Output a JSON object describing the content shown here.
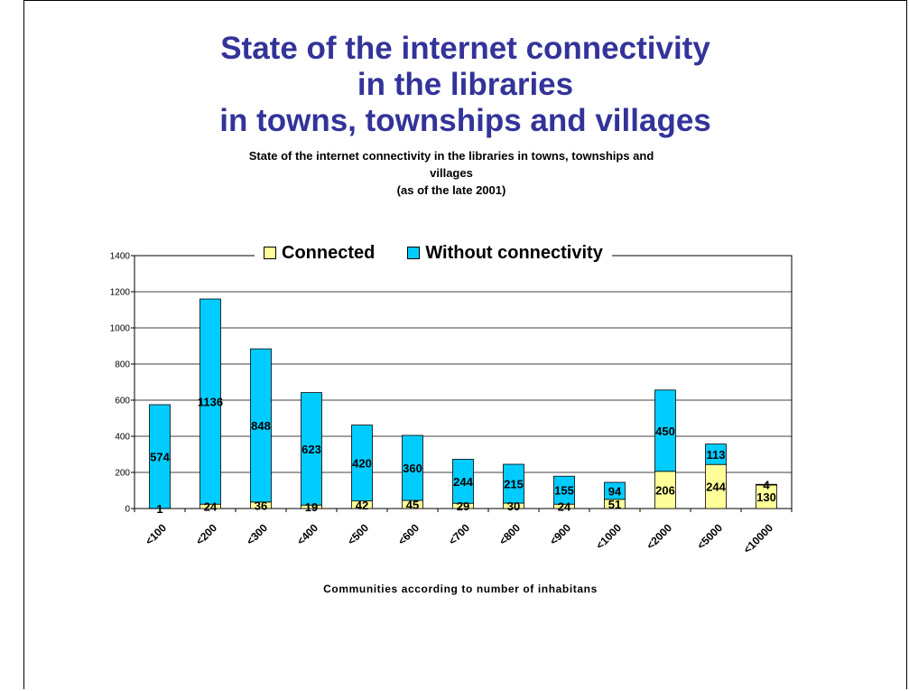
{
  "slide": {
    "title_lines": [
      "State of the internet connectivity",
      "in the libraries",
      "in towns, townships and villages"
    ]
  },
  "chart_data": {
    "type": "bar",
    "stacked": true,
    "title_lines": [
      "State of the internet connectivity in the libraries in towns, townships and",
      "villages",
      "(as of the late 2001)"
    ],
    "xlabel": "Communities according to number of inhabitans",
    "ylabel": "",
    "ylim": [
      0,
      1400
    ],
    "yticks": [
      0,
      200,
      400,
      600,
      800,
      1000,
      1200,
      1400
    ],
    "grid": true,
    "legend_position": "top",
    "categories": [
      "<100",
      "<200",
      "<300",
      "<400",
      "<500",
      "<600",
      "<700",
      "<800",
      "<900",
      "<1000",
      "<2000",
      "<5000",
      "<10000"
    ],
    "series": [
      {
        "name": "Connected",
        "color": "#ffff99",
        "values": [
          1,
          24,
          36,
          19,
          42,
          45,
          29,
          30,
          24,
          51,
          206,
          244,
          130
        ]
      },
      {
        "name": "Without connectivity",
        "color": "#00ccff",
        "values": [
          574,
          1136,
          848,
          623,
          420,
          360,
          244,
          215,
          155,
          94,
          450,
          113,
          4
        ]
      }
    ]
  }
}
